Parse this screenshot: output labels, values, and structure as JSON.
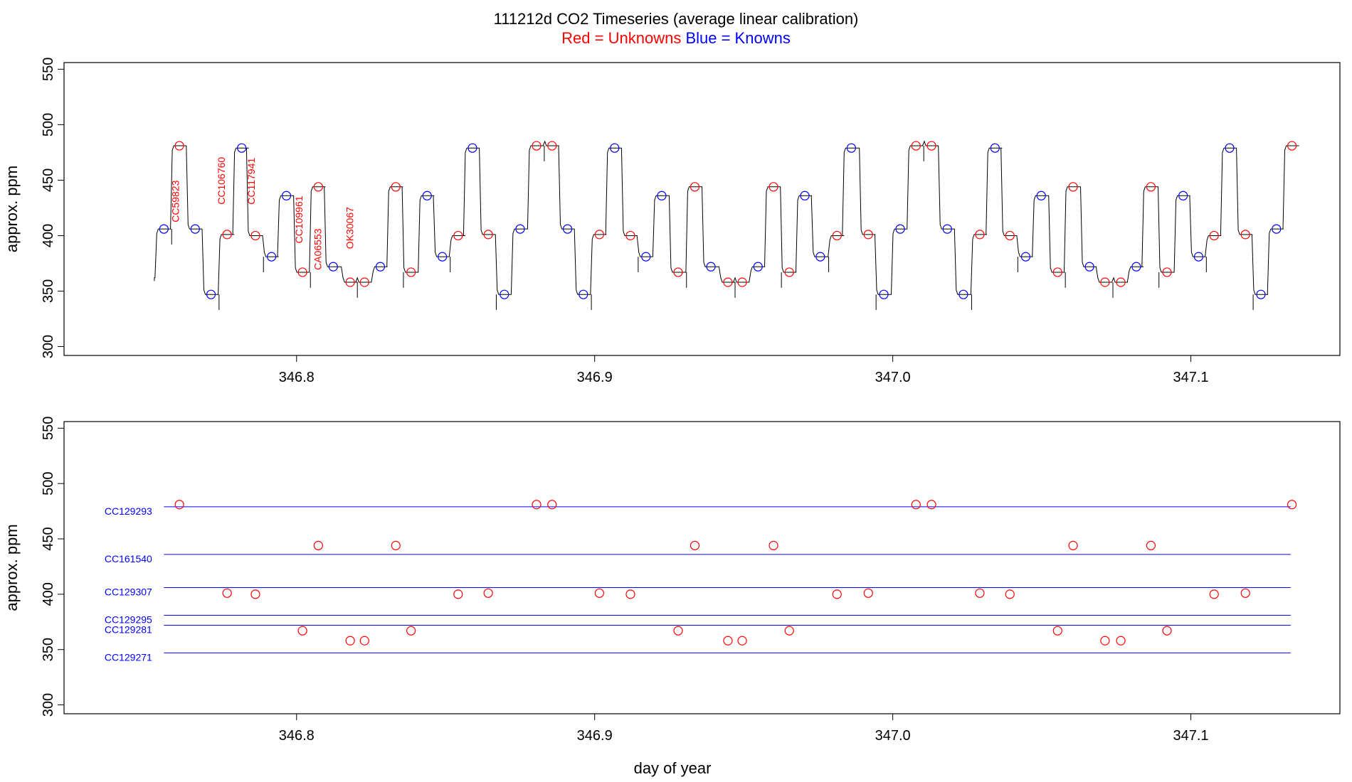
{
  "chart_data": {
    "title": "111212d   CO2 Timeseries (average linear calibration)",
    "legend": {
      "red_text": "Red = Unknowns",
      "blue_text": "Blue = Knowns",
      "red_color": "#ff0000",
      "blue_color": "#0000ff"
    },
    "xlabel": "day of year",
    "xlim": [
      346.722,
      347.15
    ],
    "x_ticks": [
      346.8,
      346.9,
      347.0,
      347.1
    ],
    "x_tick_labels": [
      "346.8",
      "346.9",
      "347.0",
      "347.1"
    ],
    "panels": [
      {
        "type": "line",
        "ylabel": "approx. ppm",
        "ylim": [
          292,
          556
        ],
        "y_ticks": [
          300,
          350,
          400,
          450,
          500,
          550
        ],
        "y_tick_labels": [
          "300",
          "350",
          "400",
          "450",
          "500",
          "550"
        ],
        "series_color": "#000000",
        "unknown_points": [
          {
            "x": 346.7607,
            "y": 481
          },
          {
            "x": 346.7767,
            "y": 401
          },
          {
            "x": 346.7862,
            "y": 400
          },
          {
            "x": 346.802,
            "y": 367
          },
          {
            "x": 346.8073,
            "y": 444
          },
          {
            "x": 346.818,
            "y": 358
          },
          {
            "x": 346.8228,
            "y": 358
          },
          {
            "x": 346.8333,
            "y": 444
          },
          {
            "x": 346.8384,
            "y": 367
          },
          {
            "x": 346.8542,
            "y": 400
          },
          {
            "x": 346.8643,
            "y": 401
          },
          {
            "x": 346.8805,
            "y": 481
          },
          {
            "x": 346.8857,
            "y": 481
          },
          {
            "x": 346.9016,
            "y": 401
          },
          {
            "x": 346.912,
            "y": 400
          },
          {
            "x": 346.928,
            "y": 367
          },
          {
            "x": 346.9336,
            "y": 444
          },
          {
            "x": 346.9447,
            "y": 358
          },
          {
            "x": 346.9495,
            "y": 358
          },
          {
            "x": 346.96,
            "y": 444
          },
          {
            "x": 346.9653,
            "y": 367
          },
          {
            "x": 346.9813,
            "y": 400
          },
          {
            "x": 346.9918,
            "y": 401
          },
          {
            "x": 347.0078,
            "y": 481
          },
          {
            "x": 347.013,
            "y": 481
          },
          {
            "x": 347.0292,
            "y": 401
          },
          {
            "x": 347.0393,
            "y": 400
          },
          {
            "x": 347.0553,
            "y": 367
          },
          {
            "x": 347.0605,
            "y": 444
          },
          {
            "x": 347.0712,
            "y": 358
          },
          {
            "x": 347.0765,
            "y": 358
          },
          {
            "x": 347.0866,
            "y": 444
          },
          {
            "x": 347.092,
            "y": 367
          },
          {
            "x": 347.1078,
            "y": 400
          },
          {
            "x": 347.1183,
            "y": 401
          },
          {
            "x": 347.1339,
            "y": 481
          }
        ],
        "known_points": [
          {
            "x": 346.7555,
            "y": 406
          },
          {
            "x": 346.766,
            "y": 406
          },
          {
            "x": 346.7713,
            "y": 347
          },
          {
            "x": 346.7816,
            "y": 479
          },
          {
            "x": 346.7916,
            "y": 381
          },
          {
            "x": 346.7966,
            "y": 436
          },
          {
            "x": 346.8123,
            "y": 372
          },
          {
            "x": 346.8281,
            "y": 372
          },
          {
            "x": 346.8438,
            "y": 436
          },
          {
            "x": 346.8489,
            "y": 381
          },
          {
            "x": 346.859,
            "y": 479
          },
          {
            "x": 346.8697,
            "y": 347
          },
          {
            "x": 346.875,
            "y": 406
          },
          {
            "x": 346.8909,
            "y": 406
          },
          {
            "x": 346.8962,
            "y": 347
          },
          {
            "x": 346.9067,
            "y": 479
          },
          {
            "x": 346.9172,
            "y": 381
          },
          {
            "x": 346.9225,
            "y": 436
          },
          {
            "x": 346.939,
            "y": 372
          },
          {
            "x": 346.9548,
            "y": 372
          },
          {
            "x": 346.9705,
            "y": 436
          },
          {
            "x": 346.9757,
            "y": 381
          },
          {
            "x": 346.9861,
            "y": 479
          },
          {
            "x": 346.997,
            "y": 347
          },
          {
            "x": 347.0025,
            "y": 406
          },
          {
            "x": 347.0183,
            "y": 406
          },
          {
            "x": 347.0237,
            "y": 347
          },
          {
            "x": 347.0343,
            "y": 479
          },
          {
            "x": 347.0446,
            "y": 381
          },
          {
            "x": 347.0498,
            "y": 436
          },
          {
            "x": 347.066,
            "y": 372
          },
          {
            "x": 347.0817,
            "y": 372
          },
          {
            "x": 347.0974,
            "y": 436
          },
          {
            "x": 347.1026,
            "y": 381
          },
          {
            "x": 347.113,
            "y": 479
          },
          {
            "x": 347.1235,
            "y": 347
          },
          {
            "x": 347.1287,
            "y": 406
          }
        ],
        "annotations": [
          {
            "text": "CC59823",
            "x": 346.7605,
            "y": 412
          },
          {
            "text": "CC106760",
            "x": 346.776,
            "y": 428
          },
          {
            "text": "CC117941",
            "x": 346.786,
            "y": 428
          },
          {
            "text": "CC109961",
            "x": 346.802,
            "y": 393
          },
          {
            "text": "CA06553",
            "x": 346.8083,
            "y": 369
          },
          {
            "text": "OK30067",
            "x": 346.819,
            "y": 388
          }
        ]
      },
      {
        "type": "scatter",
        "ylabel": "approx. ppm",
        "ylim": [
          292,
          556
        ],
        "y_ticks": [
          300,
          350,
          400,
          450,
          500,
          550
        ],
        "y_tick_labels": [
          "300",
          "350",
          "400",
          "450",
          "500",
          "550"
        ],
        "reference_lines": [
          {
            "label": "CC129293",
            "y": 479
          },
          {
            "label": "CC161540",
            "y": 436
          },
          {
            "label": "CC129307",
            "y": 406
          },
          {
            "label": "CC129295",
            "y": 381
          },
          {
            "label": "CC129281",
            "y": 372
          },
          {
            "label": "CC129271",
            "y": 347
          }
        ],
        "reference_x_range": [
          346.7555,
          347.1335
        ],
        "unknown_points": [
          {
            "x": 346.7607,
            "y": 481
          },
          {
            "x": 346.7767,
            "y": 401
          },
          {
            "x": 346.7862,
            "y": 400
          },
          {
            "x": 346.802,
            "y": 367
          },
          {
            "x": 346.8073,
            "y": 444
          },
          {
            "x": 346.818,
            "y": 358
          },
          {
            "x": 346.8228,
            "y": 358
          },
          {
            "x": 346.8333,
            "y": 444
          },
          {
            "x": 346.8384,
            "y": 367
          },
          {
            "x": 346.8542,
            "y": 400
          },
          {
            "x": 346.8643,
            "y": 401
          },
          {
            "x": 346.8805,
            "y": 481
          },
          {
            "x": 346.8857,
            "y": 481
          },
          {
            "x": 346.9016,
            "y": 401
          },
          {
            "x": 346.912,
            "y": 400
          },
          {
            "x": 346.928,
            "y": 367
          },
          {
            "x": 346.9336,
            "y": 444
          },
          {
            "x": 346.9447,
            "y": 358
          },
          {
            "x": 346.9495,
            "y": 358
          },
          {
            "x": 346.96,
            "y": 444
          },
          {
            "x": 346.9653,
            "y": 367
          },
          {
            "x": 346.9813,
            "y": 400
          },
          {
            "x": 346.9918,
            "y": 401
          },
          {
            "x": 347.0078,
            "y": 481
          },
          {
            "x": 347.013,
            "y": 481
          },
          {
            "x": 347.0292,
            "y": 401
          },
          {
            "x": 347.0393,
            "y": 400
          },
          {
            "x": 347.0553,
            "y": 367
          },
          {
            "x": 347.0605,
            "y": 444
          },
          {
            "x": 347.0712,
            "y": 358
          },
          {
            "x": 347.0765,
            "y": 358
          },
          {
            "x": 347.0866,
            "y": 444
          },
          {
            "x": 347.092,
            "y": 367
          },
          {
            "x": 347.1078,
            "y": 400
          },
          {
            "x": 347.1183,
            "y": 401
          },
          {
            "x": 347.1339,
            "y": 481
          }
        ]
      }
    ]
  }
}
